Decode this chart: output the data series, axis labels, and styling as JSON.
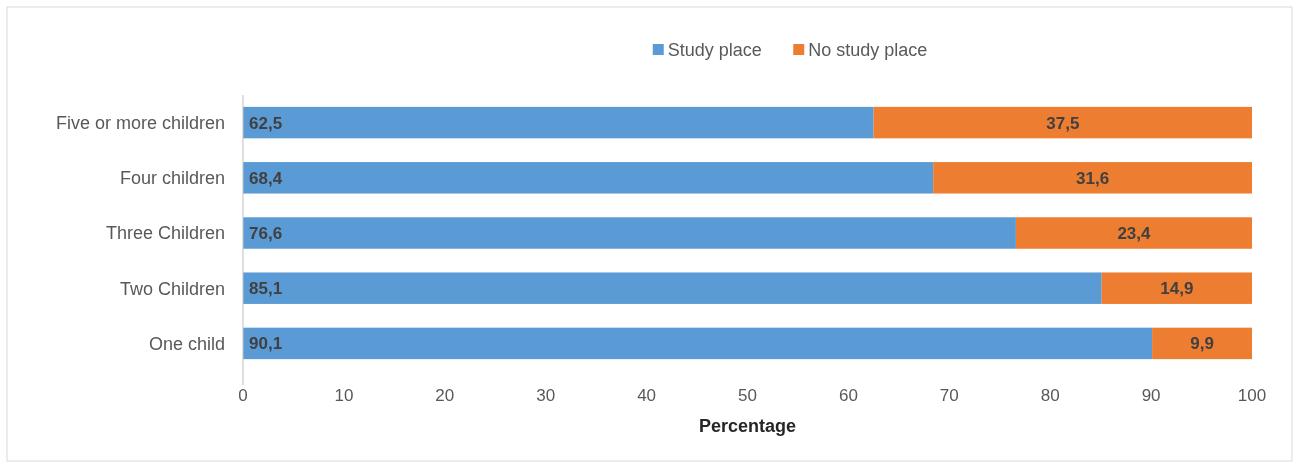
{
  "chart_data": {
    "type": "bar",
    "orientation": "horizontal",
    "stacked": true,
    "xlabel": "Percentage",
    "categories": [
      "Five or more children",
      "Four children",
      "Three Children",
      "Two Children",
      "One child"
    ],
    "series": [
      {
        "name": "Study place",
        "color": "#5b9bd5",
        "values": [
          62.5,
          68.4,
          76.6,
          85.1,
          90.1
        ],
        "value_labels": [
          "62,5",
          "68,4",
          "76,6",
          "85,1",
          "90,1"
        ]
      },
      {
        "name": "No study place",
        "color": "#ed7d31",
        "values": [
          37.5,
          31.6,
          23.4,
          14.9,
          9.9
        ],
        "value_labels": [
          "37,5",
          "31,6",
          "23,4",
          "14,9",
          "9,9"
        ]
      }
    ],
    "xlim": [
      0,
      100
    ],
    "xticks": [
      0,
      10,
      20,
      30,
      40,
      50,
      60,
      70,
      80,
      90,
      100
    ],
    "grid": false,
    "legend": "top"
  }
}
